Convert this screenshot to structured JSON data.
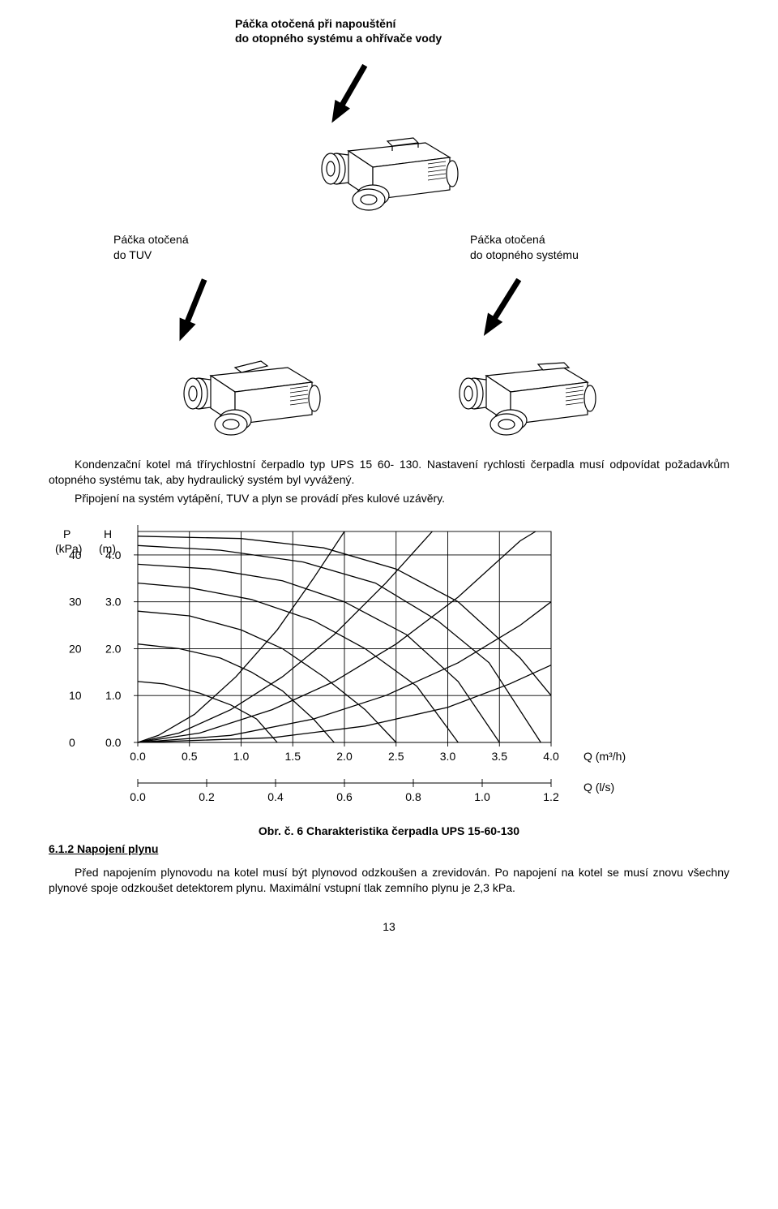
{
  "top_caption": {
    "line1": "Páčka otočená při napouštění",
    "line2": "do otopného systému a ohřívače vody"
  },
  "mid_labels": {
    "left": {
      "line1": "Páčka otočená",
      "line2": "do TUV"
    },
    "right": {
      "line1": "Páčka otočená",
      "line2": "do otopného systému"
    }
  },
  "paragraph1": "Kondenzační kotel má třírychlostní čerpadlo typ UPS 15 60- 130. Nastavení rychlosti čerpadla musí odpovídat požadavkům otopného systému tak, aby hydraulický systém byl vyvážený.",
  "paragraph2": "Připojení na systém vytápění, TUV a plyn se provádí přes kulové uzávěry.",
  "figure_caption": "Obr. č.  6   Charakteristika čerpadla UPS 15-60-130",
  "section_heading": "6.1.2   Napojení plynu",
  "paragraph3": "Před napojením plynovodu na kotel musí být plynovod odzkoušen a zrevidován. Po napojení na kotel se musí znovu všechny plynové spoje odzkoušet detektorem plynu. Maximální vstupní tlak zemního plynu je 2,3 kPa.",
  "page_number": "13",
  "chart": {
    "type": "line",
    "background_color": "#ffffff",
    "grid_color": "#000000",
    "line_color": "#000000",
    "line_width": 1.3,
    "y_left_label": "P\n(kPa)",
    "y_left2_label": "H\n(m)",
    "y_left_ticks": [
      0,
      10,
      20,
      30,
      40
    ],
    "y_left2_ticks": [
      "0.0",
      "1.0",
      "2.0",
      "3.0",
      "4.0"
    ],
    "x_top_ticks": [
      "0.0",
      "0.5",
      "1.0",
      "1.5",
      "2.0",
      "2.5",
      "3.0",
      "3.5",
      "4.0"
    ],
    "x_top_label": "Q (m³/h)",
    "x_bottom_ticks": [
      "0.0",
      "0.2",
      "0.4",
      "0.6",
      "0.8",
      "1.0",
      "1.2"
    ],
    "x_bottom_label": "Q (l/s)",
    "plot_xlim": [
      0.0,
      4.0
    ],
    "plot_ylim": [
      0.0,
      4.5
    ],
    "hgrid_y": [
      0.0,
      1.0,
      2.0,
      3.0,
      4.0
    ],
    "vgrid_x": [
      0.5,
      1.0,
      1.5,
      2.0,
      2.5,
      3.0,
      3.5,
      4.0
    ],
    "curves": [
      {
        "points": [
          [
            0.0,
            1.3
          ],
          [
            0.25,
            1.25
          ],
          [
            0.6,
            1.05
          ],
          [
            0.9,
            0.8
          ],
          [
            1.15,
            0.5
          ],
          [
            1.35,
            0.0
          ]
        ]
      },
      {
        "points": [
          [
            0.0,
            2.1
          ],
          [
            0.4,
            2.0
          ],
          [
            0.8,
            1.8
          ],
          [
            1.1,
            1.5
          ],
          [
            1.4,
            1.1
          ],
          [
            1.7,
            0.5
          ],
          [
            1.9,
            0.0
          ]
        ]
      },
      {
        "points": [
          [
            0.0,
            2.8
          ],
          [
            0.5,
            2.7
          ],
          [
            1.0,
            2.4
          ],
          [
            1.4,
            2.0
          ],
          [
            1.8,
            1.4
          ],
          [
            2.2,
            0.7
          ],
          [
            2.5,
            0.0
          ]
        ]
      },
      {
        "points": [
          [
            0.0,
            3.4
          ],
          [
            0.5,
            3.3
          ],
          [
            1.1,
            3.05
          ],
          [
            1.7,
            2.6
          ],
          [
            2.2,
            2.0
          ],
          [
            2.7,
            1.2
          ],
          [
            3.1,
            0.0
          ]
        ]
      },
      {
        "points": [
          [
            0.0,
            3.8
          ],
          [
            0.7,
            3.7
          ],
          [
            1.4,
            3.45
          ],
          [
            2.0,
            3.0
          ],
          [
            2.6,
            2.3
          ],
          [
            3.1,
            1.3
          ],
          [
            3.5,
            0.0
          ]
        ]
      },
      {
        "points": [
          [
            0.0,
            4.2
          ],
          [
            0.8,
            4.1
          ],
          [
            1.6,
            3.85
          ],
          [
            2.3,
            3.4
          ],
          [
            2.9,
            2.6
          ],
          [
            3.4,
            1.7
          ],
          [
            3.9,
            0.0
          ]
        ]
      },
      {
        "points": [
          [
            0.0,
            4.4
          ],
          [
            1.0,
            4.35
          ],
          [
            1.8,
            4.15
          ],
          [
            2.5,
            3.7
          ],
          [
            3.1,
            3.0
          ],
          [
            3.7,
            1.8
          ],
          [
            4.0,
            1.0
          ]
        ]
      },
      {
        "points": [
          [
            0.0,
            0.0
          ],
          [
            0.2,
            0.15
          ],
          [
            0.55,
            0.6
          ],
          [
            0.95,
            1.4
          ],
          [
            1.35,
            2.4
          ],
          [
            1.7,
            3.5
          ],
          [
            2.0,
            4.5
          ]
        ]
      },
      {
        "points": [
          [
            0.0,
            0.0
          ],
          [
            0.4,
            0.2
          ],
          [
            0.9,
            0.7
          ],
          [
            1.4,
            1.4
          ],
          [
            1.9,
            2.3
          ],
          [
            2.4,
            3.4
          ],
          [
            2.85,
            4.5
          ]
        ]
      },
      {
        "points": [
          [
            0.0,
            0.0
          ],
          [
            0.6,
            0.2
          ],
          [
            1.3,
            0.7
          ],
          [
            1.9,
            1.3
          ],
          [
            2.5,
            2.1
          ],
          [
            3.1,
            3.1
          ],
          [
            3.7,
            4.3
          ],
          [
            3.85,
            4.5
          ]
        ]
      },
      {
        "points": [
          [
            0.0,
            0.0
          ],
          [
            0.9,
            0.15
          ],
          [
            1.7,
            0.5
          ],
          [
            2.4,
            1.0
          ],
          [
            3.1,
            1.7
          ],
          [
            3.7,
            2.5
          ],
          [
            4.0,
            3.0
          ]
        ]
      },
      {
        "points": [
          [
            0.0,
            0.0
          ],
          [
            1.3,
            0.1
          ],
          [
            2.2,
            0.35
          ],
          [
            3.0,
            0.75
          ],
          [
            3.6,
            1.25
          ],
          [
            4.0,
            1.65
          ]
        ]
      }
    ]
  }
}
